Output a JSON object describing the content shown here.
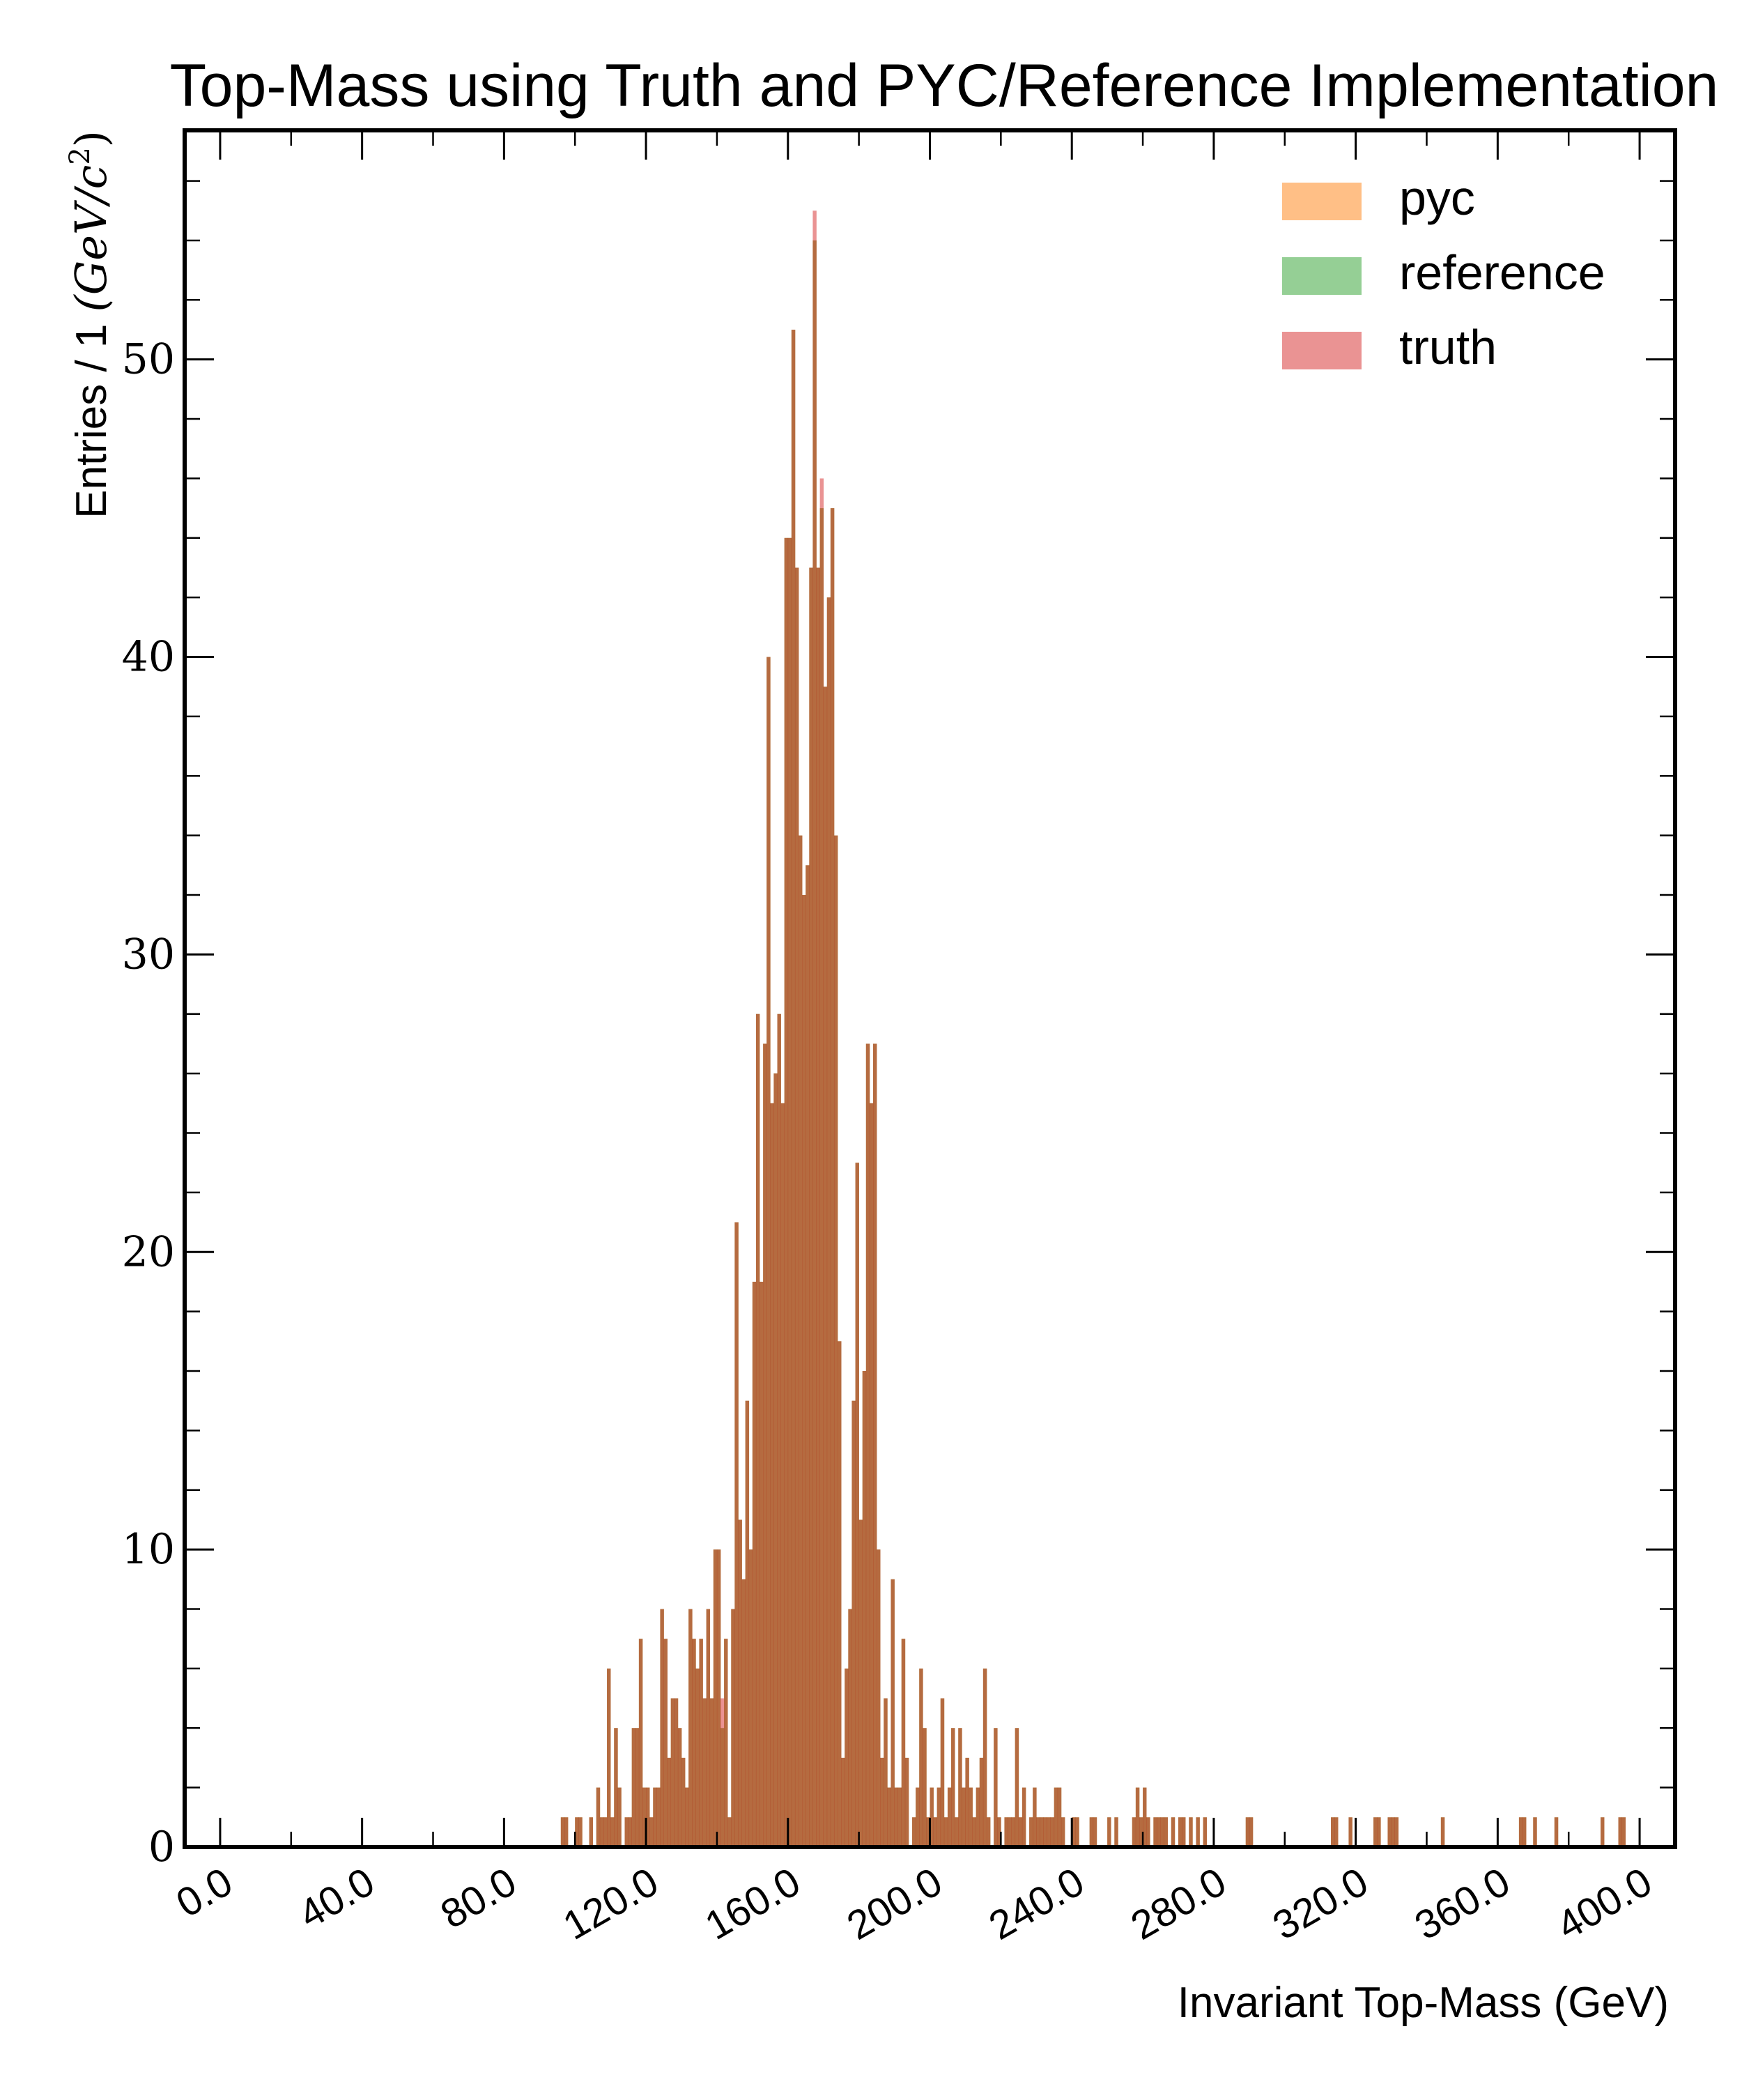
{
  "chart_data": {
    "type": "bar",
    "title": "Top-Mass using Truth and PYC/Reference Implementation",
    "xlabel": "Invariant Top-Mass (GeV)",
    "ylabel": {
      "text": "Entries / 1 ",
      "math": "(GeV/c",
      "exp": "2",
      "close": ")"
    },
    "xlim": [
      -10,
      410
    ],
    "ylim": [
      0,
      57.7
    ],
    "bin_width": 1,
    "x_ticks": [
      0,
      40,
      80,
      120,
      160,
      200,
      240,
      280,
      320,
      360,
      400
    ],
    "x_tick_labels": [
      "0.0",
      "40.0",
      "80.0",
      "120.0",
      "160.0",
      "200.0",
      "240.0",
      "280.0",
      "320.0",
      "360.0",
      "400.0"
    ],
    "y_ticks": [
      0,
      10,
      20,
      30,
      40,
      50
    ],
    "y_tick_labels": [
      "0",
      "10",
      "20",
      "30",
      "40",
      "50"
    ],
    "legend_position": "top-right",
    "grid": false,
    "series": [
      {
        "name": "pyc",
        "color": "#ff7f0e",
        "opacity": 0.5,
        "x": [
          96,
          97,
          100,
          101,
          104,
          106,
          107,
          108,
          109,
          110,
          111,
          112,
          114,
          115,
          116,
          117,
          118,
          119,
          120,
          121,
          122,
          123,
          124,
          125,
          126,
          127,
          128,
          129,
          130,
          131,
          132,
          133,
          134,
          135,
          136,
          137,
          138,
          139,
          140,
          141,
          142,
          143,
          144,
          145,
          146,
          147,
          148,
          149,
          150,
          151,
          152,
          153,
          154,
          155,
          156,
          157,
          158,
          159,
          160,
          161,
          162,
          163,
          164,
          165,
          166,
          167,
          168,
          169,
          170,
          171,
          172,
          173,
          174,
          175,
          176,
          177,
          178,
          179,
          180,
          181,
          182,
          183,
          184,
          185,
          186,
          187,
          188,
          189,
          190,
          191,
          192,
          193,
          195,
          196,
          197,
          198,
          199,
          200,
          201,
          202,
          203,
          204,
          205,
          206,
          207,
          208,
          209,
          210,
          211,
          212,
          213,
          214,
          215,
          216,
          218,
          219,
          221,
          222,
          223,
          224,
          225,
          226,
          228,
          229,
          230,
          231,
          232,
          233,
          234,
          235,
          236,
          237,
          240,
          241,
          245,
          246,
          250,
          252,
          257,
          258,
          259,
          260,
          261,
          263,
          264,
          265,
          266,
          268,
          270,
          271,
          273,
          275,
          277,
          289,
          290,
          313,
          314,
          318,
          325,
          326,
          329,
          330,
          331,
          344,
          366,
          367,
          370,
          376,
          389,
          394,
          395
        ],
        "values": [
          1,
          1,
          1,
          1,
          1,
          2,
          1,
          1,
          6,
          1,
          4,
          2,
          1,
          1,
          4,
          4,
          7,
          2,
          2,
          1,
          2,
          2,
          8,
          7,
          3,
          5,
          5,
          4,
          3,
          2,
          8,
          7,
          6,
          7,
          5,
          8,
          5,
          10,
          10,
          4,
          7,
          1,
          8,
          21,
          11,
          9,
          15,
          10,
          19,
          28,
          19,
          27,
          40,
          25,
          26,
          28,
          25,
          44,
          44,
          51,
          43,
          34,
          32,
          33,
          43,
          54,
          43,
          45,
          39,
          42,
          45,
          34,
          17,
          3,
          6,
          8,
          15,
          23,
          11,
          16,
          27,
          25,
          27,
          10,
          3,
          5,
          2,
          9,
          2,
          2,
          7,
          3,
          1,
          2,
          6,
          4,
          1,
          2,
          1,
          2,
          5,
          1,
          2,
          4,
          1,
          4,
          2,
          3,
          2,
          1,
          2,
          3,
          6,
          1,
          4,
          1,
          1,
          1,
          1,
          4,
          1,
          2,
          1,
          2,
          1,
          1,
          1,
          1,
          1,
          2,
          2,
          1,
          1,
          1,
          1,
          1,
          1,
          1,
          1,
          2,
          1,
          2,
          1,
          1,
          1,
          1,
          1,
          1,
          1,
          1,
          1,
          1,
          1,
          1,
          1,
          1,
          1,
          1,
          1,
          1,
          1,
          1,
          1,
          1,
          1,
          1,
          1,
          1,
          1,
          1,
          1
        ]
      },
      {
        "name": "reference",
        "color": "#2ca02c",
        "opacity": 0.5,
        "x": [
          96,
          97,
          100,
          101,
          104,
          106,
          107,
          108,
          109,
          110,
          111,
          112,
          114,
          115,
          116,
          117,
          118,
          119,
          120,
          121,
          122,
          123,
          124,
          125,
          126,
          127,
          128,
          129,
          130,
          131,
          132,
          133,
          134,
          135,
          136,
          137,
          138,
          139,
          140,
          141,
          142,
          143,
          144,
          145,
          146,
          147,
          148,
          149,
          150,
          151,
          152,
          153,
          154,
          155,
          156,
          157,
          158,
          159,
          160,
          161,
          162,
          163,
          164,
          165,
          166,
          167,
          168,
          169,
          170,
          171,
          172,
          173,
          174,
          175,
          176,
          177,
          178,
          179,
          180,
          181,
          182,
          183,
          184,
          185,
          186,
          187,
          188,
          189,
          190,
          191,
          192,
          193,
          195,
          196,
          197,
          198,
          199,
          200,
          201,
          202,
          203,
          204,
          205,
          206,
          207,
          208,
          209,
          210,
          211,
          212,
          213,
          214,
          215,
          216,
          218,
          219,
          221,
          222,
          223,
          224,
          225,
          226,
          228,
          229,
          230,
          231,
          232,
          233,
          234,
          235,
          236,
          237,
          240,
          241,
          245,
          246,
          250,
          252,
          257,
          258,
          259,
          260,
          261,
          263,
          264,
          265,
          266,
          268,
          270,
          271,
          273,
          275,
          277,
          289,
          290,
          313,
          314,
          318,
          325,
          326,
          329,
          330,
          331,
          344,
          366,
          367,
          370,
          376,
          389,
          394,
          395
        ],
        "values": [
          1,
          1,
          1,
          1,
          1,
          2,
          1,
          1,
          6,
          1,
          4,
          2,
          1,
          1,
          4,
          4,
          7,
          2,
          2,
          1,
          2,
          2,
          8,
          7,
          3,
          5,
          5,
          4,
          3,
          2,
          8,
          7,
          6,
          7,
          5,
          8,
          5,
          10,
          10,
          4,
          7,
          1,
          8,
          21,
          11,
          9,
          15,
          10,
          19,
          28,
          19,
          27,
          40,
          25,
          26,
          28,
          25,
          44,
          44,
          51,
          43,
          34,
          32,
          33,
          43,
          54,
          43,
          45,
          39,
          42,
          45,
          34,
          17,
          3,
          6,
          8,
          15,
          23,
          11,
          16,
          27,
          25,
          27,
          10,
          3,
          5,
          2,
          9,
          2,
          2,
          7,
          3,
          1,
          2,
          6,
          4,
          1,
          2,
          1,
          2,
          5,
          1,
          2,
          4,
          1,
          4,
          2,
          3,
          2,
          1,
          2,
          3,
          6,
          1,
          4,
          1,
          1,
          1,
          1,
          4,
          1,
          2,
          1,
          2,
          1,
          1,
          1,
          1,
          1,
          2,
          2,
          1,
          1,
          1,
          1,
          1,
          1,
          1,
          1,
          2,
          1,
          2,
          1,
          1,
          1,
          1,
          1,
          1,
          1,
          1,
          1,
          1,
          1,
          1,
          1,
          1,
          1,
          1,
          1,
          1,
          1,
          1,
          1,
          1,
          1,
          1,
          1,
          1,
          1,
          1,
          1
        ]
      },
      {
        "name": "truth",
        "color": "#d62728",
        "opacity": 0.5,
        "x": [
          96,
          97,
          100,
          101,
          104,
          106,
          107,
          108,
          109,
          110,
          111,
          112,
          114,
          115,
          116,
          117,
          118,
          119,
          120,
          121,
          122,
          123,
          124,
          125,
          126,
          127,
          128,
          129,
          130,
          131,
          132,
          133,
          134,
          135,
          136,
          137,
          138,
          139,
          140,
          141,
          142,
          143,
          144,
          145,
          146,
          147,
          148,
          149,
          150,
          151,
          152,
          153,
          154,
          155,
          156,
          157,
          158,
          159,
          160,
          161,
          162,
          163,
          164,
          165,
          166,
          167,
          168,
          169,
          170,
          171,
          172,
          173,
          174,
          175,
          176,
          177,
          178,
          179,
          180,
          181,
          182,
          183,
          184,
          185,
          186,
          187,
          188,
          189,
          190,
          191,
          192,
          193,
          195,
          196,
          197,
          198,
          199,
          200,
          201,
          202,
          203,
          204,
          205,
          206,
          207,
          208,
          209,
          210,
          211,
          212,
          213,
          214,
          215,
          216,
          218,
          219,
          221,
          222,
          223,
          224,
          225,
          226,
          228,
          229,
          230,
          231,
          232,
          233,
          234,
          235,
          236,
          237,
          240,
          241,
          245,
          246,
          250,
          252,
          257,
          258,
          259,
          260,
          261,
          263,
          264,
          265,
          266,
          268,
          270,
          271,
          273,
          275,
          277,
          289,
          290,
          313,
          314,
          318,
          325,
          326,
          329,
          330,
          331,
          344,
          366,
          367,
          370,
          376,
          389,
          394,
          395
        ],
        "values": [
          1,
          1,
          1,
          1,
          1,
          2,
          1,
          1,
          6,
          1,
          4,
          2,
          1,
          1,
          4,
          4,
          7,
          2,
          2,
          1,
          2,
          2,
          8,
          7,
          3,
          5,
          5,
          4,
          3,
          2,
          8,
          7,
          6,
          7,
          5,
          8,
          5,
          10,
          10,
          5,
          7,
          1,
          8,
          21,
          11,
          9,
          15,
          10,
          19,
          28,
          19,
          27,
          40,
          25,
          26,
          28,
          25,
          44,
          44,
          51,
          43,
          34,
          32,
          33,
          43,
          55,
          43,
          46,
          39,
          42,
          45,
          34,
          17,
          3,
          6,
          8,
          15,
          23,
          11,
          16,
          27,
          25,
          27,
          10,
          3,
          5,
          2,
          9,
          2,
          2,
          7,
          3,
          1,
          2,
          6,
          4,
          1,
          2,
          1,
          2,
          5,
          1,
          2,
          4,
          1,
          4,
          2,
          3,
          2,
          1,
          2,
          3,
          6,
          1,
          4,
          1,
          1,
          1,
          1,
          4,
          1,
          2,
          1,
          2,
          1,
          1,
          1,
          1,
          1,
          2,
          2,
          1,
          1,
          1,
          1,
          1,
          1,
          1,
          1,
          2,
          1,
          2,
          1,
          1,
          1,
          1,
          1,
          1,
          1,
          1,
          1,
          1,
          1,
          1,
          1,
          1,
          1,
          1,
          1,
          1,
          1,
          1,
          1,
          1,
          1,
          1,
          1,
          1,
          1,
          1,
          1
        ]
      }
    ]
  }
}
